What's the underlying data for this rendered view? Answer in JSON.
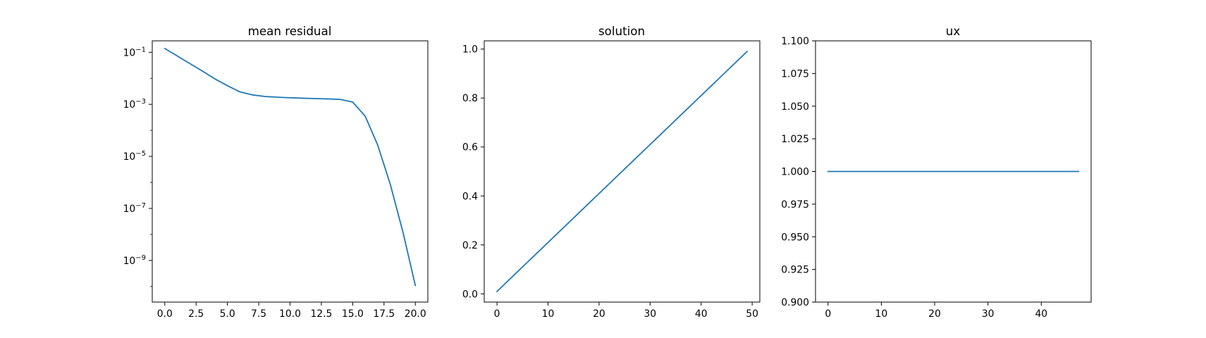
{
  "figure": {
    "background": "#ffffff",
    "line_color": "#1f77b4"
  },
  "chart_data": [
    {
      "type": "line",
      "title": "mean residual",
      "xlabel": "",
      "ylabel": "",
      "yscale": "log",
      "xlim": [
        -1.0,
        21.0
      ],
      "ylim_log10": [
        -10.6,
        -0.56
      ],
      "xticks": [
        0,
        2.5,
        5,
        7.5,
        10,
        12.5,
        15,
        17.5,
        20
      ],
      "xticklabels": [
        "0.0",
        "2.5",
        "5.0",
        "7.5",
        "10.0",
        "12.5",
        "15.0",
        "17.5",
        "20.0"
      ],
      "yticks_log10": [
        -1,
        -3,
        -5,
        -7,
        -9
      ],
      "ytick_base": "10",
      "ytick_exponents": [
        "−1",
        "−3",
        "−5",
        "−7",
        "−9"
      ],
      "grid": false,
      "series": [
        {
          "x": [
            0,
            1,
            2,
            3,
            4,
            5,
            6,
            7,
            8,
            9,
            10,
            11,
            12,
            13,
            14,
            15,
            16,
            17,
            18,
            19,
            20
          ],
          "y": [
            0.14,
            0.072,
            0.037,
            0.019,
            0.0095,
            0.0052,
            0.003,
            0.0023,
            0.002,
            0.00188,
            0.00178,
            0.00172,
            0.00166,
            0.00162,
            0.00155,
            0.00122,
            0.00035,
            2.7e-05,
            8.5e-07,
            1.3e-08,
            1.1e-10
          ]
        }
      ]
    },
    {
      "type": "line",
      "title": "solution",
      "xlabel": "",
      "ylabel": "",
      "xlim": [
        -2.5,
        51.5
      ],
      "ylim": [
        -0.0336,
        1.0336
      ],
      "xticks": [
        0,
        10,
        20,
        30,
        40,
        50
      ],
      "xticklabels": [
        "0",
        "10",
        "20",
        "30",
        "40",
        "50"
      ],
      "yticks": [
        0.0,
        0.2,
        0.4,
        0.6,
        0.8,
        1.0
      ],
      "yticklabels": [
        "0.0",
        "0.2",
        "0.4",
        "0.6",
        "0.8",
        "1.0"
      ],
      "grid": false,
      "series": [
        {
          "x": [
            0,
            49
          ],
          "y": [
            0.01,
            0.99
          ]
        }
      ]
    },
    {
      "type": "line",
      "title": "ux",
      "xlabel": "",
      "ylabel": "",
      "xlim": [
        -2.35,
        49.35
      ],
      "ylim": [
        0.9,
        1.1
      ],
      "xticks": [
        0,
        10,
        20,
        30,
        40
      ],
      "xticklabels": [
        "0",
        "10",
        "20",
        "30",
        "40"
      ],
      "yticks": [
        0.9,
        0.925,
        0.95,
        0.975,
        1.0,
        1.025,
        1.05,
        1.075,
        1.1
      ],
      "yticklabels": [
        "0.900",
        "0.925",
        "0.950",
        "0.975",
        "1.000",
        "1.025",
        "1.050",
        "1.075",
        "1.100"
      ],
      "grid": false,
      "series": [
        {
          "x": [
            0,
            47
          ],
          "y": [
            1.0,
            1.0
          ]
        }
      ]
    }
  ]
}
